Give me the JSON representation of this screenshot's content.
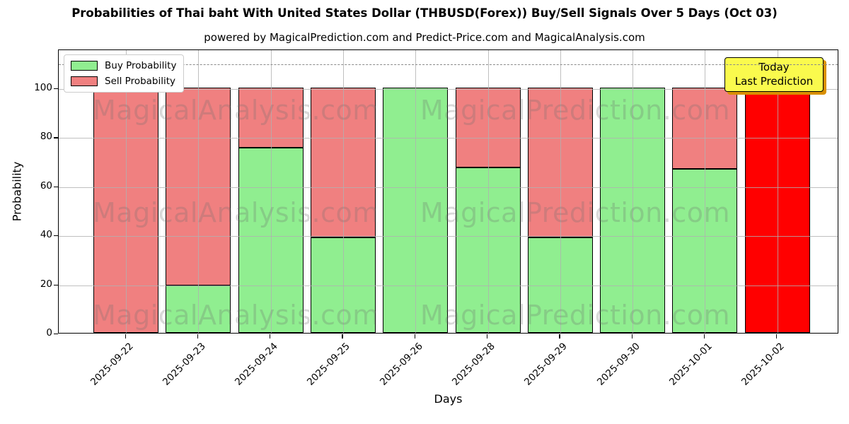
{
  "title": "Probabilities of Thai baht With United States Dollar (THBUSD(Forex)) Buy/Sell Signals Over 5 Days (Oct 03)",
  "subtitle": "powered by MagicalPrediction.com and Predict-Price.com and MagicalAnalysis.com",
  "annotation": {
    "line1": "Today",
    "line2": "Last Prediction",
    "bg_color": "#fafa4d"
  },
  "watermarks": [
    "MagicalAnalysis.com",
    "MagicalPrediction.com"
  ],
  "chart_data": {
    "type": "bar",
    "stacked": true,
    "title": "Probabilities of Thai baht With United States Dollar (THBUSD(Forex)) Buy/Sell Signals Over 5 Days (Oct 03)",
    "xlabel": "Days",
    "ylabel": "Probability",
    "yticks": [
      0,
      20,
      40,
      60,
      80,
      100
    ],
    "ylim": [
      0,
      115.8
    ],
    "dashed_line_y": 110,
    "grid": true,
    "legend_position": "upper left",
    "categories": [
      "2025-09-22",
      "2025-09-23",
      "2025-09-24",
      "2025-09-25",
      "2025-09-26",
      "2025-09-28",
      "2025-09-29",
      "2025-09-30",
      "2025-10-01",
      "2025-10-02"
    ],
    "series": [
      {
        "name": "Buy Probability",
        "color": "#90ee90",
        "values": [
          0,
          19.4,
          75.5,
          39,
          100,
          67.5,
          39,
          100,
          66.7,
          0
        ]
      },
      {
        "name": "Sell Probability",
        "color": "#f08080",
        "values": [
          100,
          80.6,
          24.5,
          61,
          0,
          32.5,
          61,
          0,
          33.3,
          100
        ]
      }
    ],
    "today_bar": {
      "index": 9,
      "sell_color": "#ff0000"
    }
  }
}
